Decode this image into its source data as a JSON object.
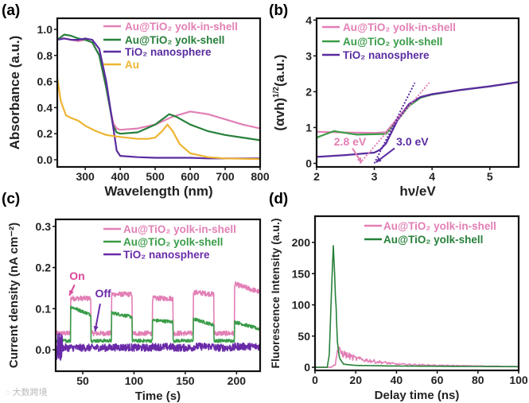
{
  "watermark": "大数跨境",
  "chart_data": [
    {
      "panel": "(a)",
      "type": "line",
      "xlabel": "Wavelength (nm)",
      "ylabel": "Absorbance (a.u.)",
      "xlim": [
        220,
        800
      ],
      "ylim": [
        -0.055,
        1.085
      ],
      "xticks": [
        300,
        400,
        500,
        600,
        700,
        800
      ],
      "yticks": [
        0.0,
        0.2,
        0.4,
        0.6,
        0.8,
        1.0
      ],
      "ytick_decimals": 1,
      "series": [
        {
          "name": "Au@TiO₂ yolk-in-shell",
          "color": "#e27fb5",
          "x": [
            220,
            240,
            260,
            280,
            300,
            320,
            340,
            360,
            380,
            390,
            400,
            450,
            500,
            550,
            600,
            650,
            700,
            750,
            800
          ],
          "y": [
            0.93,
            0.93,
            0.92,
            0.91,
            0.92,
            0.9,
            0.8,
            0.55,
            0.28,
            0.24,
            0.23,
            0.24,
            0.27,
            0.33,
            0.37,
            0.35,
            0.31,
            0.27,
            0.24
          ]
        },
        {
          "name": "Au@TiO₂ yolk-shell",
          "color": "#27803a",
          "x": [
            220,
            240,
            260,
            280,
            300,
            320,
            340,
            360,
            380,
            390,
            400,
            450,
            500,
            540,
            560,
            600,
            650,
            700,
            750,
            800
          ],
          "y": [
            0.92,
            0.96,
            0.95,
            0.93,
            0.92,
            0.9,
            0.8,
            0.55,
            0.26,
            0.21,
            0.2,
            0.21,
            0.27,
            0.35,
            0.33,
            0.27,
            0.22,
            0.19,
            0.17,
            0.15
          ]
        },
        {
          "name": "TiO₂ nanosphere",
          "color": "#5a2ca0",
          "x": [
            220,
            240,
            260,
            280,
            300,
            320,
            340,
            360,
            380,
            390,
            400,
            450,
            500,
            550,
            600,
            650,
            700,
            750,
            800
          ],
          "y": [
            0.92,
            0.93,
            0.92,
            0.92,
            0.93,
            0.92,
            0.85,
            0.6,
            0.25,
            0.07,
            0.03,
            0.02,
            0.015,
            0.015,
            0.015,
            0.01,
            0.01,
            0.01,
            0.01
          ]
        },
        {
          "name": "Au",
          "color": "#efb431",
          "x": [
            220,
            230,
            245,
            260,
            280,
            300,
            330,
            360,
            400,
            450,
            480,
            500,
            520,
            535,
            550,
            570,
            600,
            650,
            700,
            800
          ],
          "y": [
            0.63,
            0.45,
            0.34,
            0.32,
            0.3,
            0.26,
            0.22,
            0.19,
            0.175,
            0.16,
            0.16,
            0.17,
            0.22,
            0.27,
            0.22,
            0.12,
            0.05,
            0.02,
            0.01,
            0.005
          ]
        }
      ],
      "annotations": []
    },
    {
      "panel": "(b)",
      "type": "line",
      "xlabel": "hν/eV",
      "ylabel": "(αvh)",
      "ylabel_sup": "1/2",
      "ylabel_suffix": "(a.u.)",
      "xlim": [
        2,
        5.5
      ],
      "ylim": [
        -0.1,
        4.05
      ],
      "xticks": [
        2,
        3,
        4,
        5
      ],
      "yticks": [
        0,
        1,
        2,
        3,
        4
      ],
      "ytick_decimals": 0,
      "series": [
        {
          "name": "Au@TiO₂ yolk-in-shell",
          "color": "#e27fb5",
          "x": [
            2,
            2.5,
            3,
            3.2,
            3.4,
            3.6,
            3.8,
            4,
            4.5,
            5,
            5.5
          ],
          "y": [
            0.88,
            0.86,
            0.85,
            0.87,
            1.25,
            1.65,
            1.85,
            1.93,
            2.05,
            2.15,
            2.27
          ]
        },
        {
          "name": "Au@TiO₂ yolk-shell",
          "color": "#3a9c48",
          "x": [
            2,
            2.3,
            2.7,
            3.2,
            3.4,
            3.6,
            3.8,
            4,
            4.5,
            5,
            5.5
          ],
          "y": [
            0.72,
            0.9,
            0.8,
            0.82,
            1.2,
            1.6,
            1.83,
            1.92,
            2.05,
            2.15,
            2.27
          ]
        },
        {
          "name": "TiO₂ nanosphere",
          "color": "#5a2ca0",
          "x": [
            2,
            2.5,
            3,
            3.1,
            3.2,
            3.4,
            3.6,
            3.8,
            4,
            4.5,
            5,
            5.5
          ],
          "y": [
            0.18,
            0.23,
            0.3,
            0.38,
            0.55,
            1.2,
            1.65,
            1.85,
            1.93,
            2.05,
            2.15,
            2.27
          ]
        }
      ],
      "tangents": [
        {
          "color": "#e27fb5",
          "x": [
            2.75,
            3.95
          ],
          "y": [
            0,
            2.25
          ]
        },
        {
          "color": "#5a2ca0",
          "x": [
            3.0,
            3.7
          ],
          "y": [
            0,
            2.25
          ]
        }
      ],
      "annotations": [
        {
          "text": "2.8 eV",
          "color": "#e27fb5",
          "x": 2.3,
          "y": 0.5,
          "arrow_from": [
            2.62,
            0.42
          ],
          "arrow_to": [
            2.78,
            0.02
          ]
        },
        {
          "text": "3.0 eV",
          "color": "#5a2ca0",
          "x": 3.38,
          "y": 0.5,
          "arrow_from": [
            3.35,
            0.42
          ],
          "arrow_to": [
            3.03,
            0.03
          ]
        }
      ]
    },
    {
      "panel": "(c)",
      "type": "line",
      "xlabel": "Time (s)",
      "ylabel": "Current density (nA cm⁻²)",
      "xlim": [
        23.6,
        223
      ],
      "ylim": [
        -0.052,
        0.317
      ],
      "xticks": [
        50,
        100,
        150,
        200
      ],
      "yticks": [
        0.0,
        0.1,
        0.2,
        0.3
      ],
      "ytick_decimals": 1,
      "on_intervals": [
        [
          38,
          58
        ],
        [
          78,
          98
        ],
        [
          118,
          138
        ],
        [
          158,
          178
        ],
        [
          198,
          223
        ]
      ],
      "series": [
        {
          "name": "Au@TiO₂ yolk-in-shell",
          "color": "#e27fb5",
          "off_level": 0.04,
          "on_levels": [
            [
              0.125,
              0.125
            ],
            [
              0.135,
              0.135
            ],
            [
              0.125,
              0.125
            ],
            [
              0.14,
              0.135
            ],
            [
              0.16,
              0.14
            ]
          ],
          "noise": 0.006
        },
        {
          "name": "Au@TiO₂ yolk-shell",
          "color": "#3a9c48",
          "off_level": 0.022,
          "on_levels": [
            [
              0.105,
              0.085
            ],
            [
              0.09,
              0.08
            ],
            [
              0.072,
              0.068
            ],
            [
              0.075,
              0.06
            ],
            [
              0.068,
              0.05
            ]
          ],
          "noise": 0.004
        },
        {
          "name": "TiO₂ nanosphere",
          "color": "#6a2aa8",
          "off_level": 0.005,
          "on_levels": [
            [
              0.005,
              0.005
            ],
            [
              0.006,
              0.006
            ],
            [
              0.007,
              0.007
            ],
            [
              0.008,
              0.008
            ],
            [
              0.008,
              0.008
            ]
          ],
          "noise": 0.009
        }
      ],
      "annotations": [
        {
          "text": "On",
          "color": "#d9479a",
          "x": 37,
          "y": 0.17,
          "arrow_from": [
            42,
            0.158
          ],
          "arrow_to": [
            37,
            0.132
          ]
        },
        {
          "text": "Off",
          "color": "#6a2aa8",
          "x": 62,
          "y": 0.128,
          "arrow_from": [
            67,
            0.112
          ],
          "arrow_to": [
            62,
            0.045
          ]
        }
      ]
    },
    {
      "panel": "(d)",
      "type": "line",
      "xlabel": "Delay time (ns)",
      "ylabel": "Fluorescence Intensity (a.u.)",
      "xlim": [
        0,
        100
      ],
      "ylim": [
        -5,
        242
      ],
      "xticks": [
        0,
        20,
        40,
        60,
        80,
        100
      ],
      "yticks": [
        0,
        50,
        100,
        150,
        200
      ],
      "ytick_decimals": 0,
      "series": [
        {
          "name": "Au@TiO₂ yolk-in-shell",
          "color": "#e27fb5",
          "x": [
            0,
            8,
            10,
            11,
            12,
            15,
            20,
            30,
            40,
            60,
            80,
            100
          ],
          "y": [
            0,
            0,
            5,
            28,
            25,
            20,
            14,
            9,
            5,
            3,
            2,
            1
          ],
          "noise": 0.3
        },
        {
          "name": "Au@TiO₂ yolk-shell",
          "color": "#27803a",
          "x": [
            0,
            6,
            7,
            8,
            9,
            10,
            11,
            12,
            14,
            20,
            40,
            100
          ],
          "y": [
            0,
            0,
            20,
            110,
            200,
            120,
            40,
            15,
            5,
            3,
            2,
            1
          ],
          "noise": 0.05
        }
      ],
      "annotations": []
    }
  ]
}
